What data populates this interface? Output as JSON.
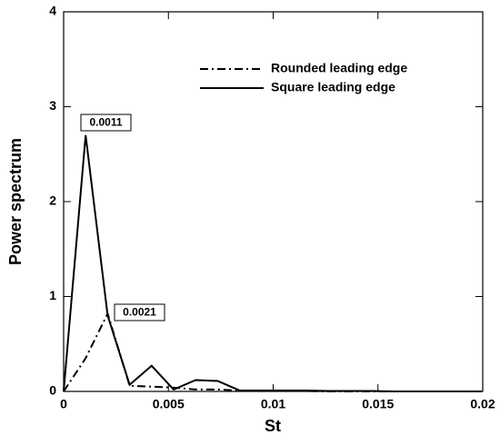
{
  "chart_data": {
    "type": "line",
    "xlabel": "St",
    "ylabel": "Power spectrum",
    "x": [
      0,
      0.00105,
      0.0021,
      0.00315,
      0.0042,
      0.00525,
      0.0063,
      0.00735,
      0.0084,
      0.00945,
      0.0105,
      0.01155,
      0.0126,
      0.01365,
      0.0147,
      0.01575,
      0.0168,
      0.01785,
      0.0189,
      0.01995
    ],
    "series": [
      {
        "name": "Rounded leading edge",
        "color": "#000000",
        "style": "dashdot",
        "values": [
          0,
          0.35,
          0.82,
          0.06,
          0.05,
          0.04,
          0.02,
          0.02,
          0.01,
          0.01,
          0.005,
          0.005,
          0,
          0,
          0,
          0,
          0,
          0,
          0,
          0
        ]
      },
      {
        "name": "Square leading edge",
        "color": "#000000",
        "style": "solid",
        "values": [
          0,
          2.7,
          0.8,
          0.07,
          0.27,
          0.02,
          0.12,
          0.11,
          0.01,
          0.01,
          0.01,
          0.01,
          0.005,
          0.005,
          0.005,
          0,
          0,
          0,
          0,
          0
        ]
      }
    ],
    "annotations": [
      "0.0011",
      "0.0021"
    ],
    "xlim": [
      0,
      0.02
    ],
    "xticks": [
      0,
      0.005,
      0.01,
      0.015,
      0.02
    ],
    "ylim": [
      0,
      4
    ],
    "yticks": [
      0,
      1,
      2,
      3,
      4
    ],
    "grid": false
  }
}
